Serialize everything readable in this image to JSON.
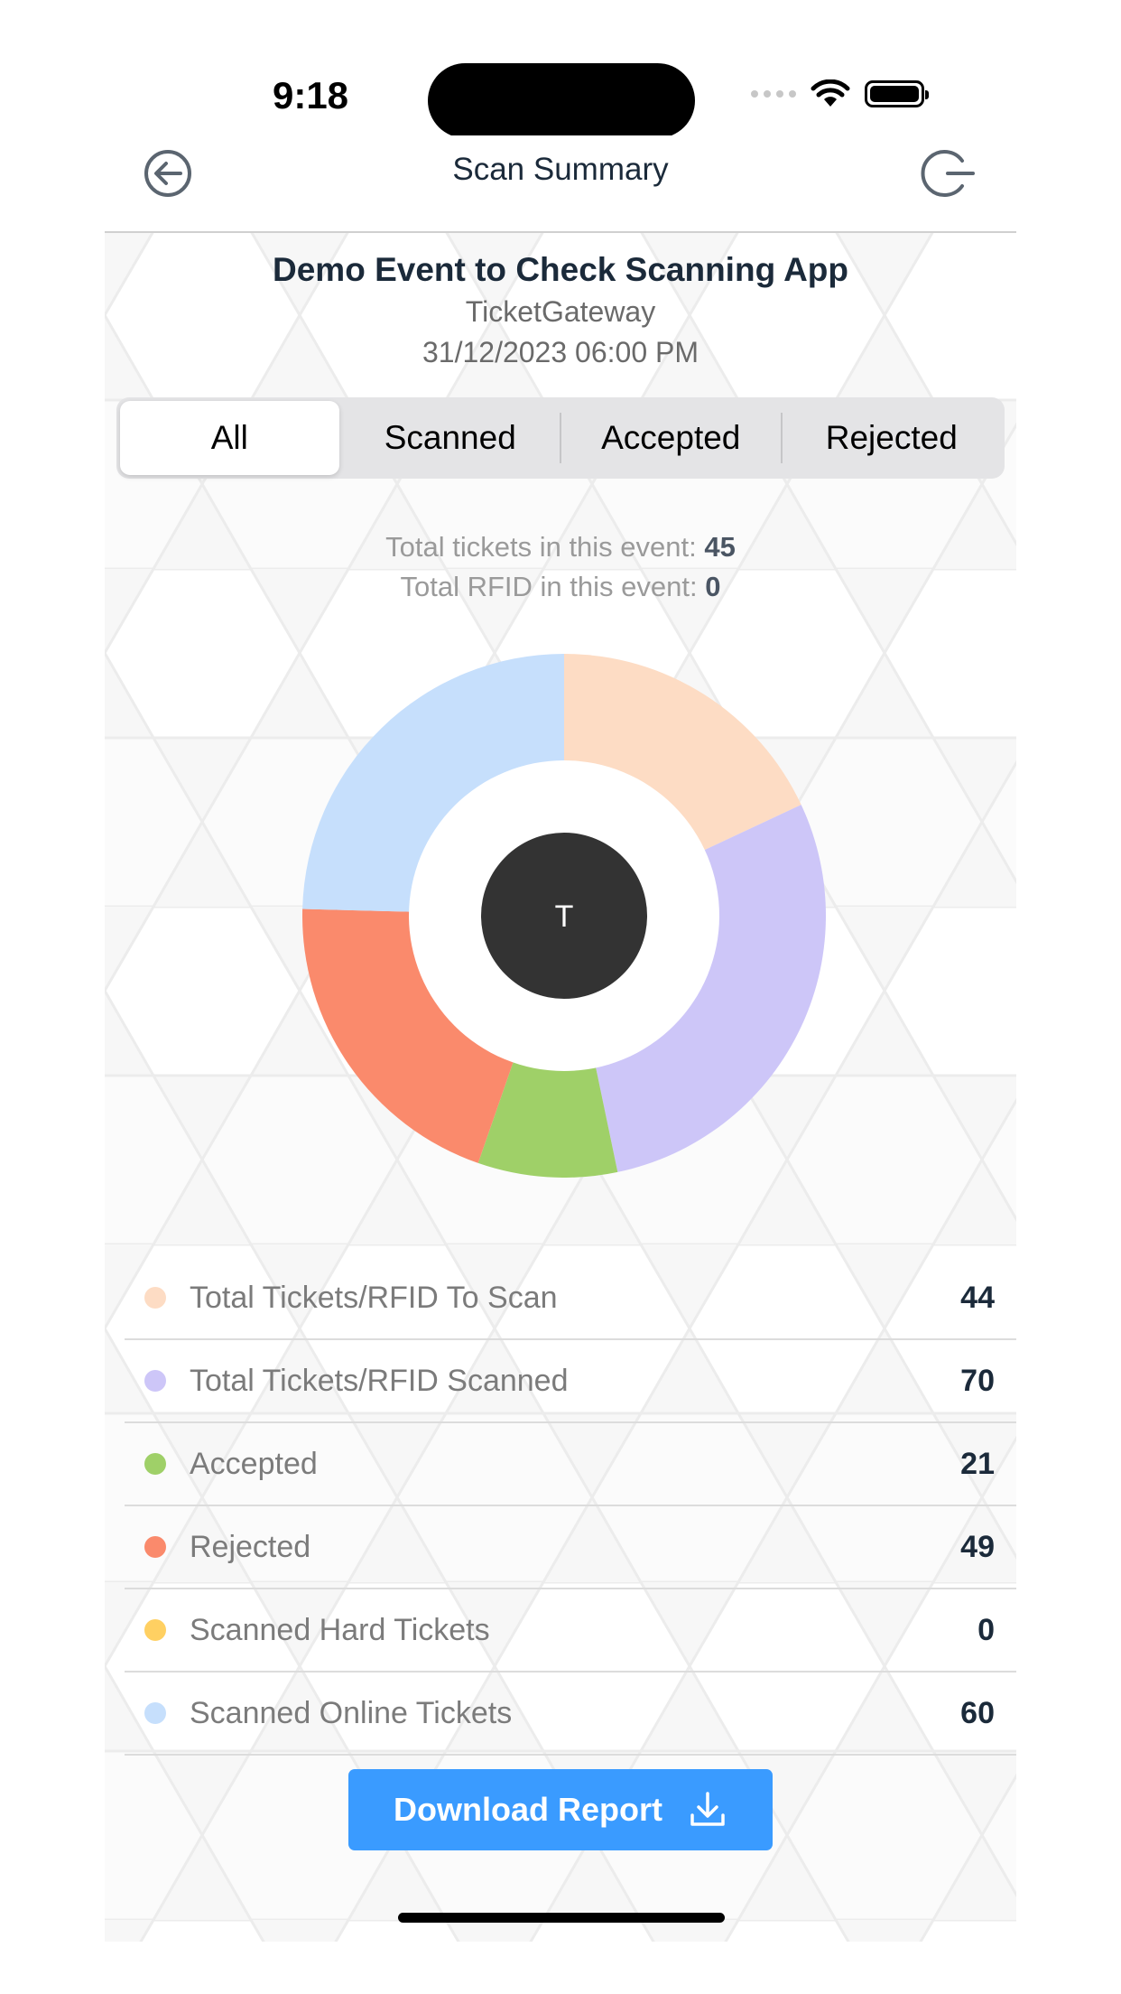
{
  "status_bar": {
    "time": "9:18"
  },
  "navbar": {
    "title": "Scan Summary",
    "back_icon": "back-arrow-icon",
    "logout_icon": "logout-icon"
  },
  "event": {
    "title": "Demo Event to Check Scanning App",
    "organizer": "TicketGateway",
    "datetime": "31/12/2023 06:00 PM"
  },
  "tabs": [
    {
      "label": "All",
      "active": true
    },
    {
      "label": "Scanned",
      "active": false
    },
    {
      "label": "Accepted",
      "active": false
    },
    {
      "label": "Rejected",
      "active": false
    }
  ],
  "totals": {
    "tickets_label": "Total tickets in this event:",
    "tickets_value": "45",
    "rfid_label": "Total RFID in this event:",
    "rfid_value": "0"
  },
  "chart_center_label": "T",
  "chart_data": {
    "type": "pie",
    "categories": [
      "Total Tickets/RFID To Scan",
      "Total Tickets/RFID Scanned",
      "Accepted",
      "Rejected",
      "Scanned Hard Tickets",
      "Scanned Online Tickets"
    ],
    "values": [
      44,
      70,
      21,
      49,
      0,
      60
    ],
    "colors": [
      "#fddcc4",
      "#cdc6f8",
      "#9fd068",
      "#fa8a6c",
      "#ffd062",
      "#c6dffc"
    ]
  },
  "legend": [
    {
      "label": "Total Tickets/RFID To Scan",
      "value": "44",
      "color": "#fddcc4"
    },
    {
      "label": "Total Tickets/RFID Scanned",
      "value": "70",
      "color": "#cdc6f8"
    },
    {
      "label": "Accepted",
      "value": "21",
      "color": "#9fd068"
    },
    {
      "label": "Rejected",
      "value": "49",
      "color": "#fa8a6c"
    },
    {
      "label": "Scanned Hard Tickets",
      "value": "0",
      "color": "#ffd062"
    },
    {
      "label": "Scanned Online Tickets",
      "value": "60",
      "color": "#c6dffc"
    }
  ],
  "download": {
    "label": "Download Report",
    "icon": "download-icon",
    "color": "#3a9bff"
  }
}
